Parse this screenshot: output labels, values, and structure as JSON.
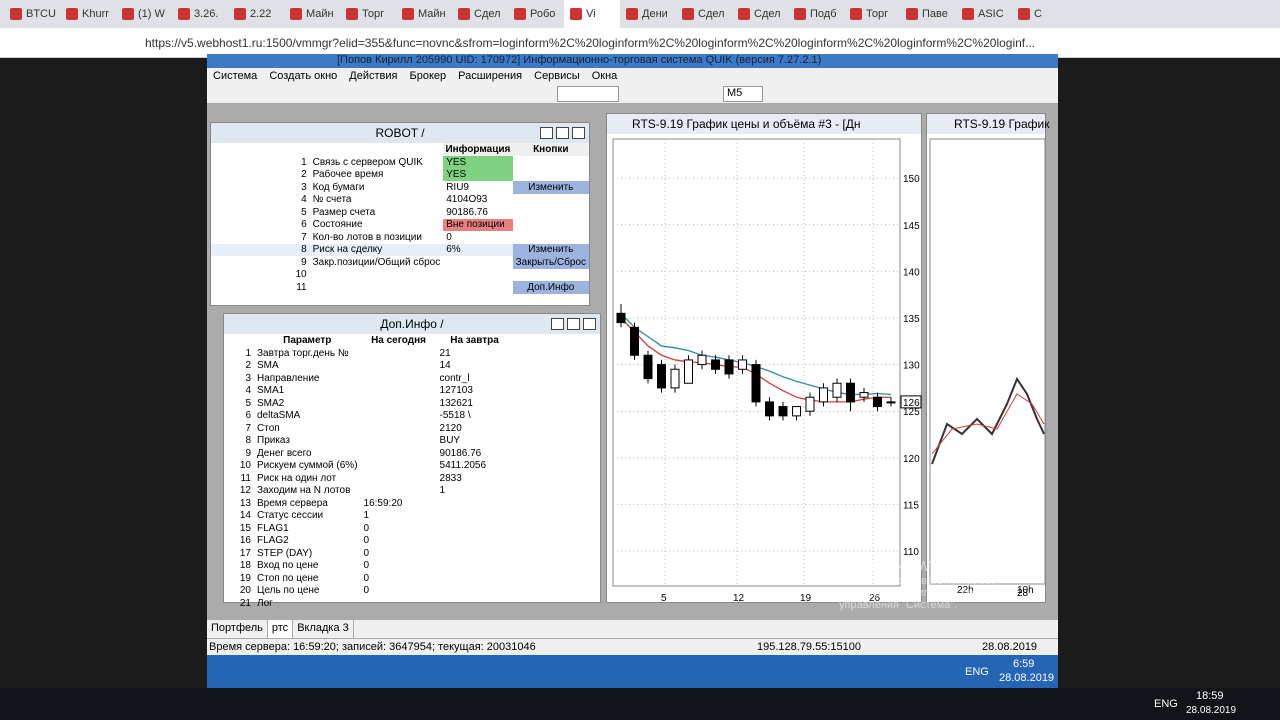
{
  "browser": {
    "tabs": [
      "BTCU",
      "Khurr",
      "(1) W",
      "3.26.",
      "2.22",
      "Майн",
      "Торг",
      "Майн",
      "Сдел",
      "Робо",
      "Vi",
      "Дени",
      "Сдел",
      "Сдел",
      "Подб",
      "Торг",
      "Паве",
      "ASIC",
      "С"
    ],
    "url": "https://v5.webhost1.ru:1500/vmmgr?elid=355&func=novnc&sfrom=loginform%2C%20loginform%2C%20loginform%2C%20loginform%2C%20loginform%2C%20loginf..."
  },
  "quik": {
    "title": "[Попов Кирилл 205990 UID: 170972] Информационно-торговая система QUIK (версия 7.27.2.1)",
    "menu": [
      "Система",
      "Создать окно",
      "Действия",
      "Брокер",
      "Расширения",
      "Сервисы",
      "Окна"
    ],
    "interval": "M5",
    "tabs": [
      "Портфель",
      "ртс",
      "Вкладка 3"
    ],
    "status": {
      "server": "Время сервера: 16:59:20; записей: 3647954; текущая: 20031046",
      "ip": "195.128.79.55:15100",
      "date": "28.08.2019"
    }
  },
  "robot": {
    "title": "ROBOT /",
    "headers": [
      "Информация",
      "Кнопки"
    ],
    "rows": [
      {
        "n": "1",
        "label": "Связь с сервером QUIK",
        "info": "YES",
        "info_bg": "#7fd17f"
      },
      {
        "n": "2",
        "label": "Рабочее время",
        "info": "YES",
        "info_bg": "#7fd17f"
      },
      {
        "n": "3",
        "label": "Код бумаги",
        "info": "RIU9",
        "button": "Изменить"
      },
      {
        "n": "4",
        "label": "№ счета",
        "info": "4104O93"
      },
      {
        "n": "5",
        "label": "Размер счета",
        "info": "90186.76"
      },
      {
        "n": "6",
        "label": "Состояние",
        "info": "Вне позиции",
        "info_bg": "#e88080"
      },
      {
        "n": "7",
        "label": "Кол-во лотов в позиции",
        "info": "0"
      },
      {
        "n": "8",
        "label": "Риск на сделку",
        "info": "6%",
        "button": "Изменить"
      },
      {
        "n": "9",
        "label": "Закр.позиции/Общий сброс",
        "button": "Закрыть/Сброс"
      },
      {
        "n": "10"
      },
      {
        "n": "11",
        "button": "Доп.Инфо"
      }
    ]
  },
  "dop": {
    "title": "Доп.Инфо /",
    "headers": [
      "Параметр",
      "На сегодня",
      "На завтра"
    ],
    "rows": [
      [
        "1",
        "Завтра торг.день №",
        "",
        "21"
      ],
      [
        "2",
        "SMA",
        "",
        "14"
      ],
      [
        "3",
        "Направление",
        "",
        "contr_l"
      ],
      [
        "4",
        "SMA1",
        "",
        "127103"
      ],
      [
        "5",
        "SMA2",
        "",
        "132621"
      ],
      [
        "6",
        "deltaSMA",
        "",
        "-5518  \\"
      ],
      [
        "7",
        "Стоп",
        "",
        "2120"
      ],
      [
        "8",
        "Приказ",
        "",
        "BUY"
      ],
      [
        "9",
        "Денег всего",
        "",
        "90186.76"
      ],
      [
        "10",
        "Рискуем суммой (6%)",
        "",
        "5411.2056"
      ],
      [
        "11",
        "Риск на один лот",
        "",
        "2833"
      ],
      [
        "12",
        "Заходим на N лотов",
        "",
        "1"
      ],
      [
        "13",
        "Время сервера",
        "16:59:20",
        ""
      ],
      [
        "14",
        "Статус сессии",
        "1",
        ""
      ],
      [
        "15",
        "FLAG1",
        "0",
        ""
      ],
      [
        "16",
        "FLAG2",
        "0",
        ""
      ],
      [
        "17",
        "STEP (DAY)",
        "0",
        ""
      ],
      [
        "18",
        "Вход по цене",
        "0",
        ""
      ],
      [
        "19",
        "Стоп по цене",
        "0",
        ""
      ],
      [
        "20",
        "Цель по цене",
        "0",
        ""
      ],
      [
        "21",
        "Лог",
        "",
        ""
      ]
    ]
  },
  "chart2_title": "RTS-9.19 График",
  "chart2_xlabels": [
    "22h",
    "10h",
    "28"
  ],
  "chart_data": {
    "type": "candlestick",
    "title": "RTS-9.19 График цены и объёма #3 - [Дн",
    "x_labels": [
      "5",
      "12",
      "19",
      "26"
    ],
    "ylim": [
      106.25,
      154.2
    ],
    "yticks": [
      110,
      115,
      120,
      125,
      130,
      135,
      140,
      145,
      150
    ],
    "last_price_label": "126",
    "open": [
      135.5,
      134,
      131,
      130,
      127.5,
      128,
      130,
      130.5,
      130.5,
      129.5,
      130,
      126,
      125.5,
      124.5,
      125,
      126,
      126.5,
      128,
      126.5,
      126.5,
      126
    ],
    "close": [
      134.5,
      131,
      128.5,
      127.5,
      129.5,
      130.5,
      131,
      129.5,
      129,
      130.5,
      126,
      124.5,
      124.5,
      125.5,
      126.5,
      127.5,
      128,
      126,
      127,
      125.5,
      126
    ],
    "high": [
      136.5,
      134.5,
      131.5,
      130.5,
      130,
      131,
      131.5,
      131,
      131,
      131,
      130.5,
      126.5,
      126,
      125.5,
      127,
      128,
      128.5,
      128.5,
      127.5,
      127,
      126.5
    ],
    "low": [
      134,
      130.5,
      128,
      127,
      127,
      128,
      129.5,
      129,
      128.5,
      129,
      125.5,
      124,
      124,
      124,
      124.5,
      125.5,
      126,
      125,
      126,
      125,
      125.5
    ],
    "series": [
      {
        "color": "#2a8f9a",
        "values": [
          135.5,
          134,
          133,
          132,
          131.8,
          131.5,
          131,
          130.8,
          130.5,
          130.2,
          129.8,
          129.3,
          128.7,
          128.2,
          127.8,
          127.4,
          127,
          126.8,
          126.8,
          126.9,
          126.8
        ]
      },
      {
        "color": "#d83b3b",
        "values": [
          135,
          133.5,
          132,
          131,
          130.5,
          130.3,
          130.2,
          130,
          129.8,
          129.7,
          129,
          128,
          127.2,
          126.5,
          126.2,
          126,
          126,
          126,
          126.3,
          126.5,
          126.5
        ]
      }
    ]
  },
  "watermark": {
    "title": "Активация Windows",
    "text": "Чтобы активировать Windows, перейдите в компонент панели управления \"Система\"."
  },
  "inner_taskbar": {
    "lang": "ENG",
    "time": "6:59",
    "date": "28.08.2019"
  },
  "taskbar": {
    "lang": "ENG",
    "time": "18:59",
    "date": "28.08.2019"
  }
}
